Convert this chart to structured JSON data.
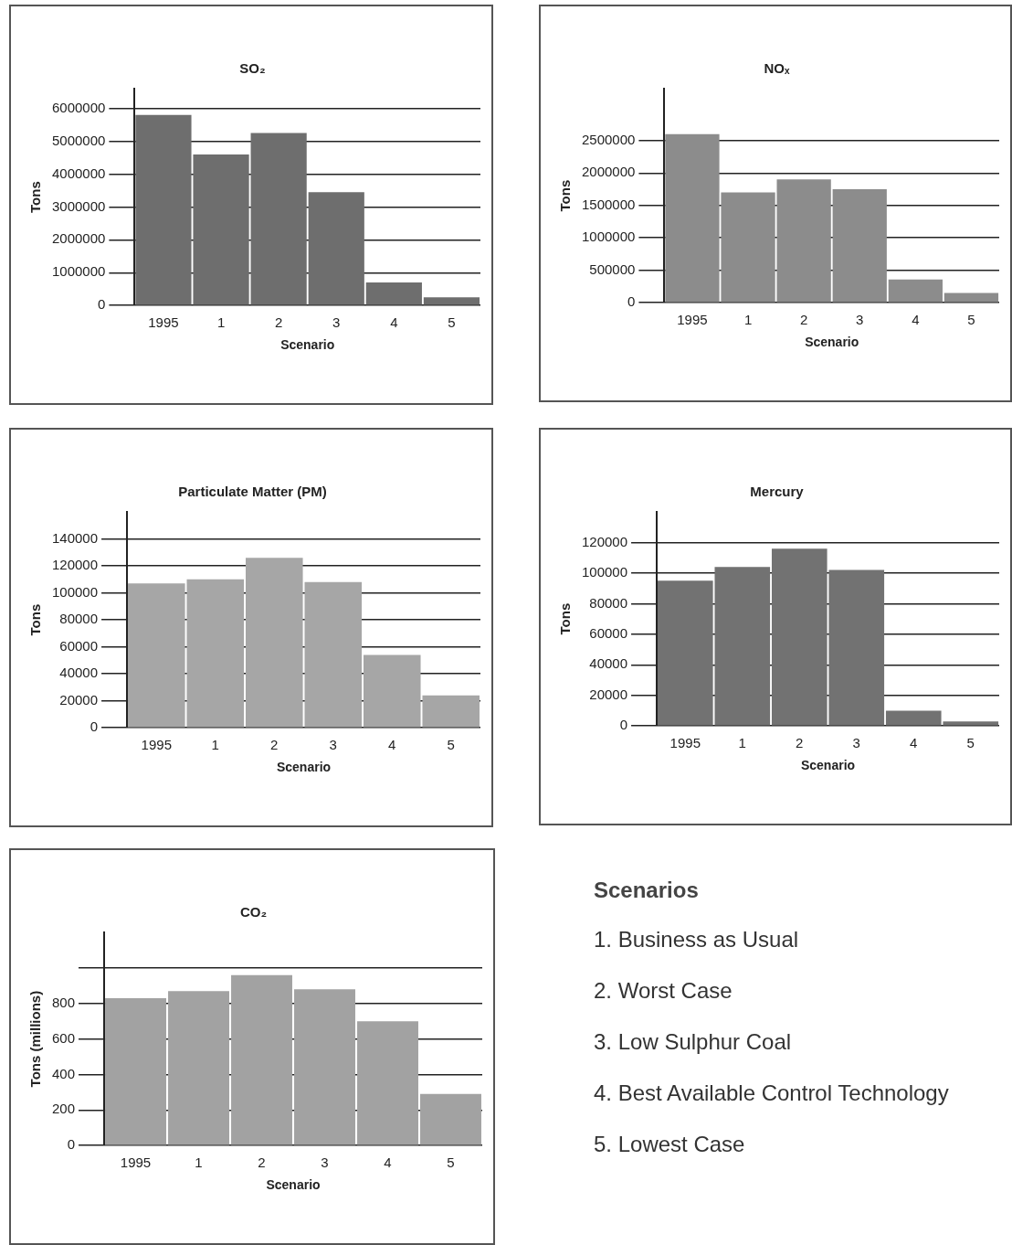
{
  "chart_data": [
    {
      "type": "bar",
      "title": "SO₂",
      "xlabel": "Scenario",
      "ylabel": "Tons",
      "categories": [
        "1995",
        "1",
        "2",
        "3",
        "4",
        "5"
      ],
      "values": [
        5800000,
        4600000,
        5250000,
        3450000,
        700000,
        250000
      ],
      "color": "#6e6e6e",
      "ylim": [
        0,
        6600000
      ],
      "yticks": [
        0,
        1000000,
        2000000,
        3000000,
        4000000,
        5000000,
        6000000
      ],
      "grid": "y",
      "legend": false
    },
    {
      "type": "bar",
      "title": "NOₓ",
      "xlabel": "Scenario",
      "ylabel": "Tons",
      "categories": [
        "1995",
        "1",
        "2",
        "3",
        "4",
        "5"
      ],
      "values": [
        2600000,
        1700000,
        1900000,
        1750000,
        360000,
        150000
      ],
      "color": "#8c8c8c",
      "ylim": [
        0,
        3300000
      ],
      "yticks": [
        0,
        500000,
        1000000,
        1500000,
        2000000,
        2500000
      ],
      "grid": "y",
      "legend": false
    },
    {
      "type": "bar",
      "title": "Particulate Matter (PM)",
      "xlabel": "Scenario",
      "ylabel": "Tons",
      "categories": [
        "1995",
        "1",
        "2",
        "3",
        "4",
        "5"
      ],
      "values": [
        107000,
        110000,
        126000,
        108000,
        54000,
        24000
      ],
      "color": "#a6a6a6",
      "ylim": [
        0,
        160000
      ],
      "yticks": [
        0,
        20000,
        40000,
        60000,
        80000,
        100000,
        120000,
        140000
      ],
      "grid": "y",
      "legend": false
    },
    {
      "type": "bar",
      "title": "Mercury",
      "xlabel": "Scenario",
      "ylabel": "Tons",
      "categories": [
        "1995",
        "1",
        "2",
        "3",
        "4",
        "5"
      ],
      "values": [
        95000,
        104000,
        116000,
        102000,
        10000,
        3000
      ],
      "color": "#727272",
      "ylim": [
        0,
        140000
      ],
      "yticks": [
        0,
        20000,
        40000,
        60000,
        80000,
        100000,
        120000
      ],
      "grid": "y",
      "legend": false
    },
    {
      "type": "bar",
      "title": "CO₂",
      "xlabel": "Scenario",
      "ylabel": "Tons (millions)",
      "categories": [
        "1995",
        "1",
        "2",
        "3",
        "4",
        "5"
      ],
      "values": [
        830,
        870,
        960,
        880,
        700,
        290
      ],
      "color": "#a2a2a2",
      "ylim": [
        0,
        1200
      ],
      "yticks": [
        0,
        200,
        400,
        600,
        800,
        {
          "value": 1000,
          "label": null
        }
      ],
      "grid": "y",
      "legend": false
    },
    {
      "type": "other",
      "title": "Scenarios",
      "annotations": [
        "1. Business as Usual",
        "2. Worst Case",
        "3. Low Sulphur Coal",
        "4. Best Available Control Technology",
        "5. Lowest Case"
      ]
    }
  ]
}
